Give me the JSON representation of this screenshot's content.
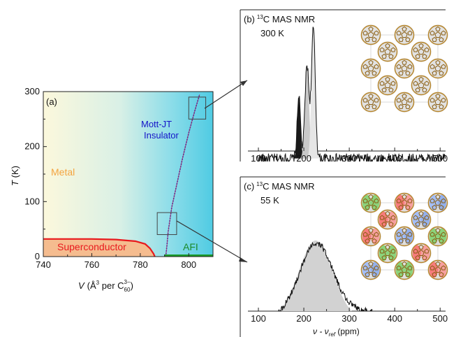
{
  "chart_data": [
    {
      "panel": "(a)",
      "type": "area",
      "xlabel_var": "V",
      "xlabel_unit_pre": "(Å",
      "xlabel_sup1": "3",
      "xlabel_mid": " per C",
      "xlabel_sub": "60",
      "xlabel_sup2": "3−",
      "xlabel_close": ")",
      "ylabel_var": "T",
      "ylabel_unit": " (K)",
      "xlim": [
        740,
        810
      ],
      "ylim": [
        0,
        300
      ],
      "xticks": [
        "740",
        "760",
        "780",
        "800"
      ],
      "yticks": [
        "0",
        "100",
        "200",
        "300"
      ],
      "regions": {
        "metal": "Metal",
        "superconductor": "Superconductor",
        "afi": "AFI",
        "insulator_line1": "Mott-JT",
        "insulator_line2": "Insulator"
      },
      "superconductor_boundary": [
        [
          740,
          32
        ],
        [
          750,
          32
        ],
        [
          760,
          32
        ],
        [
          770,
          31
        ],
        [
          778,
          28
        ],
        [
          782,
          23
        ],
        [
          784,
          15
        ],
        [
          785.5,
          5
        ],
        [
          786,
          0
        ]
      ],
      "mott_boundary": [
        [
          790.5,
          0
        ],
        [
          791,
          20
        ],
        [
          791.5,
          45
        ],
        [
          793,
          90
        ],
        [
          795,
          130
        ],
        [
          797.5,
          180
        ],
        [
          800,
          225
        ],
        [
          802.5,
          265
        ],
        [
          804.5,
          295
        ]
      ],
      "afi_range": [
        790,
        810
      ],
      "zoom_boxes": [
        {
          "v": [
            800,
            807
          ],
          "t": [
            250,
            290
          ]
        },
        {
          "v": [
            787,
            795
          ],
          "t": [
            40,
            80
          ]
        }
      ],
      "colors": {
        "metal": "#fcf7d8",
        "insulator": "#56cee5",
        "superconductor": "#f5bc8f",
        "sc_line": "#e8191d",
        "mott_line": "#2a2ad0",
        "afi_line": "#1a9a2a",
        "metal_label": "#f4a440",
        "sc_label": "#e8191d",
        "mott_label": "#1414c8",
        "afi_label": "#1a8a2a"
      }
    },
    {
      "panel": "(b)",
      "type": "line",
      "title_sup": "13",
      "title": "C MAS NMR",
      "subtitle": "300 K",
      "xlim": [
        100,
        515
      ],
      "ylim": [
        0,
        1
      ],
      "xticks": [
        "100",
        "200",
        "300",
        "400",
        "500"
      ],
      "baseline": 0.1,
      "peaks": [
        {
          "center": 189,
          "width": 3.6,
          "height": 0.38
        },
        {
          "center": 207,
          "width": 4.5,
          "height": 0.57
        },
        {
          "center": 221,
          "width": 4.2,
          "height": 0.79
        }
      ],
      "filled_peaks": [
        {
          "center": 189,
          "width": 3.6,
          "height": 0.38,
          "color": "#1a1a1a"
        },
        {
          "center": 207,
          "width": 4.5,
          "height": 0.57,
          "color": "#c8c8c8"
        },
        {
          "center": 221,
          "width": 4.2,
          "height": 0.79,
          "color": "#e6e6e6"
        }
      ]
    },
    {
      "panel": "(c)",
      "type": "line",
      "title_sup": "13",
      "title": "C MAS NMR",
      "subtitle": "55 K",
      "xlabel_pre": "ν - ν",
      "xlabel_sub": "ref",
      "xlabel_post": " (ppm)",
      "xlim": [
        100,
        515
      ],
      "ylim": [
        0,
        1
      ],
      "xticks": [
        "100",
        "200",
        "300",
        "400",
        "500"
      ],
      "baseline": 0.07,
      "peaks": [
        {
          "center": 228,
          "width": 38,
          "height": 0.54
        },
        {
          "center": 330,
          "width": 28,
          "height": 0.05
        }
      ],
      "filled_peaks": [
        {
          "center": 226,
          "width": 37,
          "height": 0.56,
          "color": "#d2d2d2"
        }
      ]
    }
  ]
}
